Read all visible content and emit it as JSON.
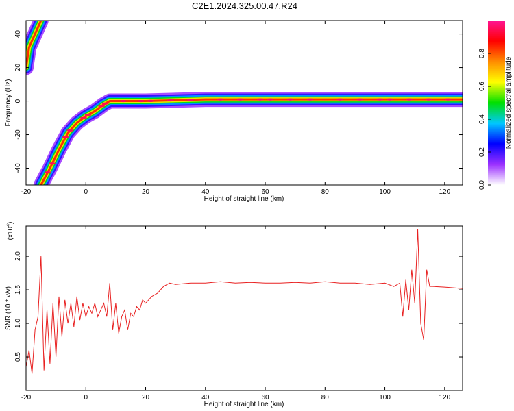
{
  "title": "C2E1.2024.325.00.47.R24",
  "chart_data": [
    {
      "type": "heatmap",
      "xlabel": "Height of straight line (km)",
      "ylabel": "Frequency (Hz)",
      "xlim": [
        -20,
        126
      ],
      "ylim": [
        -50,
        48
      ],
      "x_ticks": [
        "-20",
        "0",
        "20",
        "40",
        "60",
        "80",
        "100",
        "120"
      ],
      "y_ticks": [
        "-40",
        "-20",
        "0",
        "20",
        "40"
      ],
      "colorbar": {
        "label": "Normalized spectral amplitude",
        "range": [
          0,
          1
        ],
        "ticks": [
          "0.0",
          "0.2",
          "0.4",
          "0.6",
          "0.8"
        ],
        "colors": [
          "#ffffff",
          "#9b30ff",
          "#0000ff",
          "#00c8ff",
          "#00e000",
          "#ffff00",
          "#ff8c00",
          "#ff0000",
          "#ff1493"
        ]
      },
      "ridge": [
        {
          "x": -15,
          "y": -50
        },
        {
          "x": -12,
          "y": -40
        },
        {
          "x": -9,
          "y": -29
        },
        {
          "x": -6,
          "y": -19
        },
        {
          "x": -3,
          "y": -13
        },
        {
          "x": 0,
          "y": -9
        },
        {
          "x": 3,
          "y": -6
        },
        {
          "x": 6,
          "y": -2
        },
        {
          "x": 8,
          "y": 0
        },
        {
          "x": 20,
          "y": 0
        },
        {
          "x": 40,
          "y": 1
        },
        {
          "x": 60,
          "y": 1
        },
        {
          "x": 80,
          "y": 1
        },
        {
          "x": 100,
          "y": 1
        },
        {
          "x": 126,
          "y": 1
        }
      ],
      "alias_ridge": [
        {
          "x": -20,
          "y": 20
        },
        {
          "x": -19,
          "y": 32
        },
        {
          "x": -17,
          "y": 40
        },
        {
          "x": -15,
          "y": 48
        }
      ]
    },
    {
      "type": "line",
      "xlabel": "Height of straight line (km)",
      "ylabel": "SNR (10 * v/v)",
      "y_multiplier": "(x10",
      "y_multiplier_exp": "4",
      "xlim": [
        -20,
        126
      ],
      "ylim": [
        0,
        2.45
      ],
      "x_ticks": [
        "-20",
        "0",
        "20",
        "40",
        "60",
        "80",
        "100",
        "120"
      ],
      "y_ticks": [
        "0.5",
        "1.0",
        "1.5",
        "2.0"
      ],
      "series": [
        {
          "color": "#e82020",
          "x": [
            -20,
            -19,
            -18,
            -17,
            -16,
            -15,
            -14,
            -13,
            -12,
            -11,
            -10,
            -9,
            -8,
            -7,
            -6,
            -5,
            -4,
            -3,
            -2,
            -1,
            0,
            1,
            2,
            3,
            4,
            5,
            6,
            7,
            8,
            9,
            10,
            11,
            12,
            13,
            14,
            15,
            16,
            17,
            18,
            19,
            20,
            22,
            24,
            26,
            28,
            30,
            35,
            40,
            45,
            50,
            55,
            60,
            65,
            70,
            75,
            80,
            85,
            90,
            95,
            100,
            103,
            105,
            106,
            107,
            108,
            109,
            110,
            111,
            112,
            113,
            114,
            115,
            116,
            120,
            126
          ],
          "y": [
            0.35,
            0.6,
            0.25,
            0.9,
            1.1,
            2.0,
            0.3,
            1.2,
            0.4,
            1.3,
            0.5,
            1.4,
            0.8,
            1.35,
            1.0,
            1.3,
            0.95,
            1.4,
            1.05,
            1.3,
            1.1,
            1.25,
            1.15,
            1.3,
            1.1,
            1.2,
            1.3,
            1.1,
            1.6,
            0.9,
            1.3,
            0.85,
            1.1,
            1.2,
            0.9,
            1.15,
            1.1,
            1.25,
            1.2,
            1.35,
            1.3,
            1.4,
            1.45,
            1.55,
            1.6,
            1.58,
            1.6,
            1.6,
            1.62,
            1.6,
            1.61,
            1.6,
            1.6,
            1.61,
            1.6,
            1.62,
            1.6,
            1.6,
            1.58,
            1.6,
            1.55,
            1.6,
            1.1,
            1.65,
            1.2,
            1.8,
            1.3,
            2.4,
            1.0,
            0.75,
            1.8,
            1.55,
            1.55,
            1.54,
            1.52
          ]
        }
      ]
    }
  ]
}
